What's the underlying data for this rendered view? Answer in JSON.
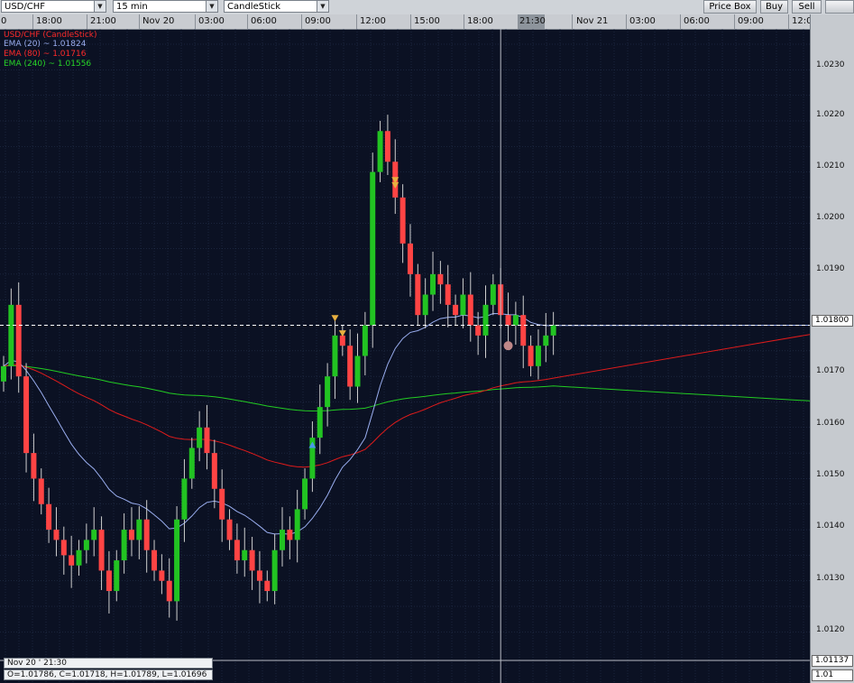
{
  "toolbar": {
    "symbol": "USD/CHF",
    "interval": "15 min",
    "chart_type": "CandleStick",
    "buttons": [
      "Price Box",
      "Buy",
      "Sell"
    ]
  },
  "time_axis": {
    "labels": [
      "0",
      "18:00",
      "21:00",
      "Nov 20",
      "03:00",
      "06:00",
      "09:00",
      "12:00",
      "15:00",
      "18:00",
      "21:30",
      "Nov 21",
      "03:00",
      "06:00",
      "09:00",
      "12:0"
    ],
    "highlight": "21:30"
  },
  "legend": [
    {
      "text": "USD/CHF (CandleStick)",
      "color": "#ff2a2a"
    },
    {
      "text": "EMA (20) ~ 1.01824",
      "color": "#9aaef0"
    },
    {
      "text": "EMA (80) ~ 1.01716",
      "color": "#ff2a2a"
    },
    {
      "text": "EMA (240) ~ 1.01556",
      "color": "#27d627"
    }
  ],
  "price_axis": {
    "labels": [
      "1.0230",
      "1.0220",
      "1.0210",
      "1.0200",
      "1.0190",
      "1.0170",
      "1.0160",
      "1.0150",
      "1.0140",
      "1.0130",
      "1.0120"
    ],
    "current_price": "1.01800",
    "cursor_price": "1.01137",
    "extra": "1.01"
  },
  "info": {
    "datetime": "Nov 20 ' 21:30",
    "ohlc": "O=1.01786, C=1.01718, H=1.01789, L=1.01696"
  },
  "colors": {
    "background": "#0b1123",
    "grid": "#2c3a58",
    "bull": "#22c322",
    "bear": "#ff4444",
    "ema20": "#9aaef0",
    "ema80": "#e01b1b",
    "ema240": "#22cc22",
    "marker_sell": "#e8b040",
    "marker_buy": "#4a9ae8",
    "marker_dot": "#c08888"
  },
  "chart_data": {
    "type": "candlestick",
    "symbol": "USD/CHF",
    "interval": "15 min",
    "y_range": [
      1.011,
      1.0238
    ],
    "current_price": 1.018,
    "series_close": [
      1.0172,
      1.0184,
      1.017,
      1.0155,
      1.015,
      1.0145,
      1.014,
      1.0138,
      1.0135,
      1.0133,
      1.0136,
      1.0138,
      1.014,
      1.0132,
      1.0128,
      1.0134,
      1.014,
      1.0138,
      1.0142,
      1.0136,
      1.0132,
      1.013,
      1.0126,
      1.0142,
      1.015,
      1.0156,
      1.016,
      1.0155,
      1.0148,
      1.0142,
      1.0138,
      1.0134,
      1.0136,
      1.0132,
      1.013,
      1.0128,
      1.0136,
      1.014,
      1.0138,
      1.0144,
      1.015,
      1.0158,
      1.0164,
      1.017,
      1.0178,
      1.0176,
      1.0168,
      1.0174,
      1.018,
      1.021,
      1.0218,
      1.0212,
      1.0205,
      1.0196,
      1.019,
      1.0182,
      1.0186,
      1.019,
      1.0188,
      1.0184,
      1.0182,
      1.0186,
      1.018,
      1.0178,
      1.0184,
      1.0188,
      1.0182,
      1.018,
      1.0182,
      1.0176,
      1.0172,
      1.0176,
      1.0178,
      1.018
    ]
  }
}
